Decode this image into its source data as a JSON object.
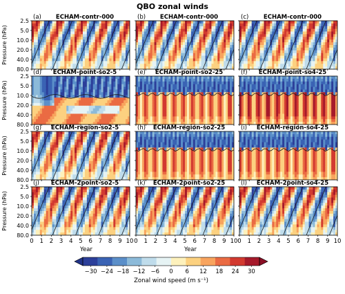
{
  "chart_data": {
    "type": "heatmap",
    "title": "QBO zonal winds",
    "ylabel": "Pressure (hPa)",
    "xlabel": "Year",
    "y_ticks": [
      "2.5",
      "5.0",
      "10.0",
      "20.0",
      "40.0",
      "80.0"
    ],
    "y_scale": "log",
    "ylim": [
      80.0,
      2.5
    ],
    "x_ticks": [
      "0",
      "1",
      "2",
      "3",
      "4",
      "5",
      "6",
      "7",
      "8",
      "9",
      "10"
    ],
    "xlim": [
      0,
      10
    ],
    "colorbar": {
      "label": "Zonal wind speed (m s⁻¹)",
      "ticks": [
        "−30",
        "−24",
        "−18",
        "−12",
        "−6",
        "0",
        "6",
        "12",
        "18",
        "24",
        "30"
      ],
      "range": [
        -33,
        33
      ],
      "colors": [
        "#2c3f9a",
        "#3a63b4",
        "#5b8fc9",
        "#8cbad9",
        "#bfdceb",
        "#e6f3f4",
        "#fdf1bc",
        "#fcd180",
        "#f8a45e",
        "#ea6b43",
        "#d23a30",
        "#a61a2b"
      ]
    },
    "panels": [
      {
        "letter": "(a)",
        "name": "ECHAM-contr-000",
        "regime": "qbo"
      },
      {
        "letter": "(b)",
        "name": "ECHAM-contr-000",
        "regime": "qbo"
      },
      {
        "letter": "(c)",
        "name": "ECHAM-contr-000",
        "regime": "qbo"
      },
      {
        "letter": "(d)",
        "name": "ECHAM-point-so2-5",
        "regime": "partial"
      },
      {
        "letter": "(e)",
        "name": "ECHAM-point-so2-25",
        "regime": "locked"
      },
      {
        "letter": "(f)",
        "name": "ECHAM-point-so4-25",
        "regime": "locked_strong"
      },
      {
        "letter": "(g)",
        "name": "ECHAM-region-so2-5",
        "regime": "qbo"
      },
      {
        "letter": "(h)",
        "name": "ECHAM-region-so2-25",
        "regime": "locked"
      },
      {
        "letter": "(i)",
        "name": "ECHAM-region-so4-25",
        "regime": "locked"
      },
      {
        "letter": "(j)",
        "name": "ECHAM-2point-so2-5",
        "regime": "qbo"
      },
      {
        "letter": "(k)",
        "name": "ECHAM-2point-so2-25",
        "regime": "qbo"
      },
      {
        "letter": "(l)",
        "name": "ECHAM-2point-so4-25",
        "regime": "qbo"
      }
    ]
  }
}
